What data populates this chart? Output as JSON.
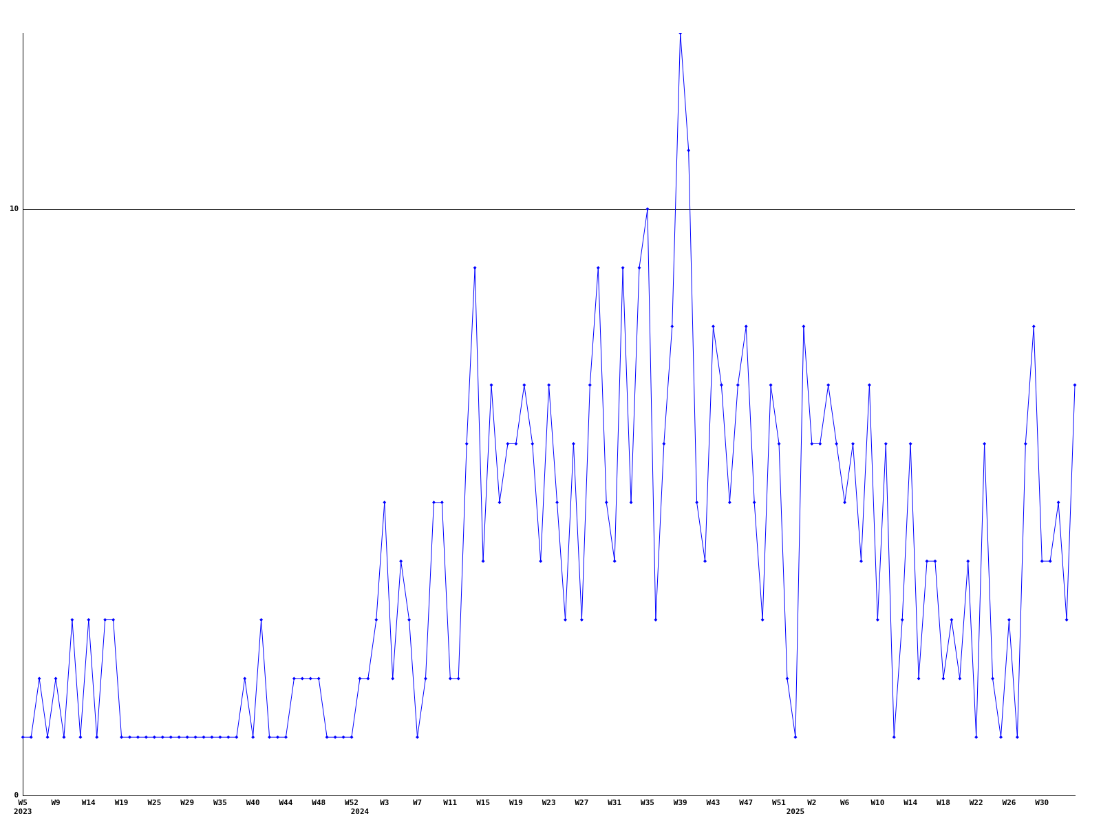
{
  "chart_data": {
    "type": "line",
    "categories": [
      "W5\n2023",
      null,
      null,
      null,
      "W9",
      null,
      null,
      null,
      "W14",
      null,
      null,
      null,
      "W19",
      null,
      null,
      null,
      "W25",
      null,
      null,
      null,
      "W29",
      null,
      null,
      null,
      "W35",
      null,
      null,
      null,
      "W40",
      null,
      null,
      null,
      "W44",
      null,
      null,
      null,
      "W48",
      null,
      null,
      null,
      "W52",
      "\n2024",
      null,
      null,
      "W3",
      null,
      null,
      null,
      "W7",
      null,
      null,
      null,
      "W11",
      null,
      null,
      null,
      "W15",
      null,
      null,
      null,
      "W19",
      null,
      null,
      null,
      "W23",
      null,
      null,
      null,
      "W27",
      null,
      null,
      null,
      "W31",
      null,
      null,
      null,
      "W35",
      null,
      null,
      null,
      "W39",
      null,
      null,
      null,
      "W43",
      null,
      null,
      null,
      "W47",
      null,
      null,
      null,
      "W51",
      null,
      "\n2025",
      null,
      "W2",
      null,
      null,
      null,
      "W6",
      null,
      null,
      null,
      "W10",
      null,
      null,
      null,
      "W14",
      null,
      null,
      null,
      "W18",
      null,
      null,
      null,
      "W22",
      null,
      null,
      null,
      "W26",
      null,
      null,
      null,
      "W30",
      null,
      null,
      null,
      null
    ],
    "series": [
      {
        "color": "#0000ff",
        "values": [
          1,
          1,
          2,
          1,
          2,
          1,
          3,
          1,
          3,
          1,
          3,
          3,
          1,
          1,
          1,
          1,
          1,
          1,
          1,
          1,
          1,
          1,
          1,
          1,
          1,
          1,
          1,
          2,
          1,
          3,
          1,
          1,
          1,
          2,
          2,
          2,
          2,
          1,
          1,
          1,
          1,
          2,
          2,
          3,
          5,
          2,
          4,
          3,
          1,
          2,
          5,
          5,
          2,
          2,
          6,
          9,
          4,
          7,
          5,
          6,
          6,
          7,
          6,
          4,
          7,
          5,
          3,
          6,
          3,
          7,
          9,
          5,
          4,
          9,
          5,
          9,
          10,
          3,
          6,
          8,
          13,
          11,
          5,
          4,
          8,
          7,
          5,
          7,
          8,
          5,
          3,
          7,
          6,
          2,
          1,
          8,
          6,
          6,
          7,
          6,
          5,
          6,
          4,
          7,
          3,
          6,
          1,
          3,
          6,
          2,
          4,
          4,
          2,
          3,
          2,
          4,
          1,
          6,
          2,
          1,
          3,
          1,
          6,
          8,
          4,
          4,
          5,
          3,
          7
        ]
      }
    ],
    "ylim": [
      0,
      13
    ],
    "yticks": [
      0,
      10
    ],
    "grid": "y",
    "marker": "diamond",
    "line_style": "solid",
    "legend": false
  }
}
